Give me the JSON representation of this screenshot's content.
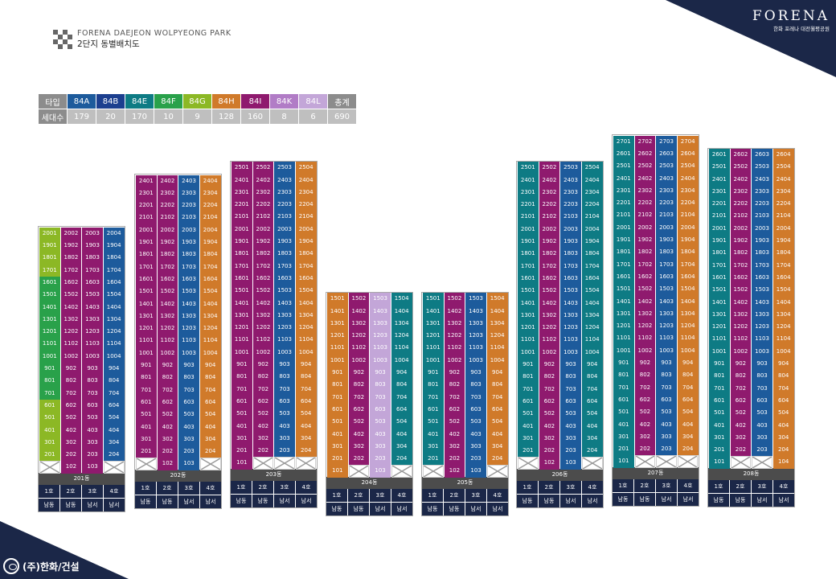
{
  "header": {
    "title": "FORENA DAEJEON WOLPYEONG PARK",
    "subtitle": "2단지 동별배치도"
  },
  "brand": {
    "name": "FORENA",
    "sub": "한화 포레나 대전월평공원"
  },
  "footer": {
    "company": "(주)한화/건설"
  },
  "colors": {
    "84A": "#1d5b9c",
    "84B": "#1c3f8f",
    "84E": "#0e7b84",
    "84F": "#29a14a",
    "84G": "#8cb825",
    "84H": "#d07a2a",
    "84I": "#8f1a6e",
    "84K": "#b17cc6",
    "84L": "#c3a6d8",
    "dark_blue": "#1b2748",
    "accent_corner": "#1b2748"
  },
  "legend": {
    "label_type": "타입",
    "label_count": "세대수",
    "label_total": "총계",
    "types": [
      "84A",
      "84B",
      "84E",
      "84F",
      "84G",
      "84H",
      "84I",
      "84K",
      "84L"
    ],
    "counts": [
      "179",
      "20",
      "170",
      "10",
      "9",
      "128",
      "160",
      "8",
      "6"
    ],
    "total": "690"
  },
  "buildings": [
    {
      "name": "201동",
      "top": 20,
      "bottom_units": [
        "x",
        "102",
        "103",
        "x"
      ],
      "col_types": [
        "84A",
        "84I",
        "84I",
        "84A"
      ],
      "overrides": {
        "2": "84G",
        "3": "84G",
        "4": "84G",
        "5": "84G",
        "6": "84G",
        "7": "84F",
        "8": "84F",
        "9": "84F",
        "10": "84F",
        "11": "84F",
        "12": "84F",
        "13": "84F",
        "14": "84F",
        "15": "84F",
        "16": "84F",
        "17": "84G",
        "18": "84G",
        "19": "84G",
        "20": "84G"
      },
      "hos": [
        "1호",
        "2호",
        "3호",
        "4호"
      ],
      "dirs": [
        "남동",
        "남동",
        "남서",
        "남서"
      ]
    },
    {
      "name": "202동",
      "top": 24,
      "bottom_units": [
        "x",
        "102",
        "103",
        "x"
      ],
      "col_types": [
        "84I",
        "84I",
        "84A",
        "84H"
      ],
      "overrides": {},
      "hos": [
        "1호",
        "2호",
        "3호",
        "4호"
      ],
      "dirs": [
        "남동",
        "남동",
        "남서",
        "남서"
      ]
    },
    {
      "name": "203동",
      "top": 25,
      "bottom_units": [
        "101",
        "x",
        "x",
        "x"
      ],
      "col_types": [
        "84I",
        "84I",
        "84A",
        "84H"
      ],
      "overrides": {},
      "hos": [
        "1호",
        "2호",
        "3호",
        "4호"
      ],
      "dirs": [
        "남동",
        "남동",
        "남서",
        "남서"
      ]
    },
    {
      "name": "204동",
      "top": 15,
      "bottom_units": [
        "101",
        "x",
        "103",
        "x"
      ],
      "col_types": [
        "84H",
        "84I",
        "84K",
        "84E"
      ],
      "overrides": {
        "col3": "84L"
      },
      "hos": [
        "1호",
        "2호",
        "3호",
        "4호"
      ],
      "dirs": [
        "남동",
        "남동",
        "남서",
        "남서"
      ]
    },
    {
      "name": "205동",
      "top": 15,
      "bottom_units": [
        "x",
        "102",
        "103",
        "x"
      ],
      "col_types": [
        "84E",
        "84I",
        "84A",
        "84H"
      ],
      "overrides": {},
      "hos": [
        "1호",
        "2호",
        "3호",
        "4호"
      ],
      "dirs": [
        "남동",
        "남동",
        "남서",
        "남서"
      ]
    },
    {
      "name": "206동",
      "top": 25,
      "bottom_units": [
        "x",
        "102",
        "103",
        "x"
      ],
      "col_types": [
        "84E",
        "84I",
        "84A",
        "84E"
      ],
      "overrides": {},
      "hos": [
        "1호",
        "2호",
        "3호",
        "4호"
      ],
      "dirs": [
        "남동",
        "남동",
        "남서",
        "남서"
      ]
    },
    {
      "name": "207동",
      "top": 27,
      "bottom_units": [
        "101",
        "x",
        "x",
        "x"
      ],
      "col_types": [
        "84E",
        "84I",
        "84A",
        "84H"
      ],
      "overrides": {},
      "hos": [
        "1호",
        "2호",
        "3호",
        "4호"
      ],
      "dirs": [
        "남동",
        "남동",
        "남서",
        "남서"
      ]
    },
    {
      "name": "208동",
      "top": 26,
      "bottom_units": [
        "101",
        "x",
        "x",
        "104"
      ],
      "col_types": [
        "84E",
        "84I",
        "84A",
        "84H"
      ],
      "overrides": {},
      "hos": [
        "1호",
        "2호",
        "3호",
        "4호"
      ],
      "dirs": [
        "남동",
        "남동",
        "남서",
        "남서"
      ]
    }
  ]
}
